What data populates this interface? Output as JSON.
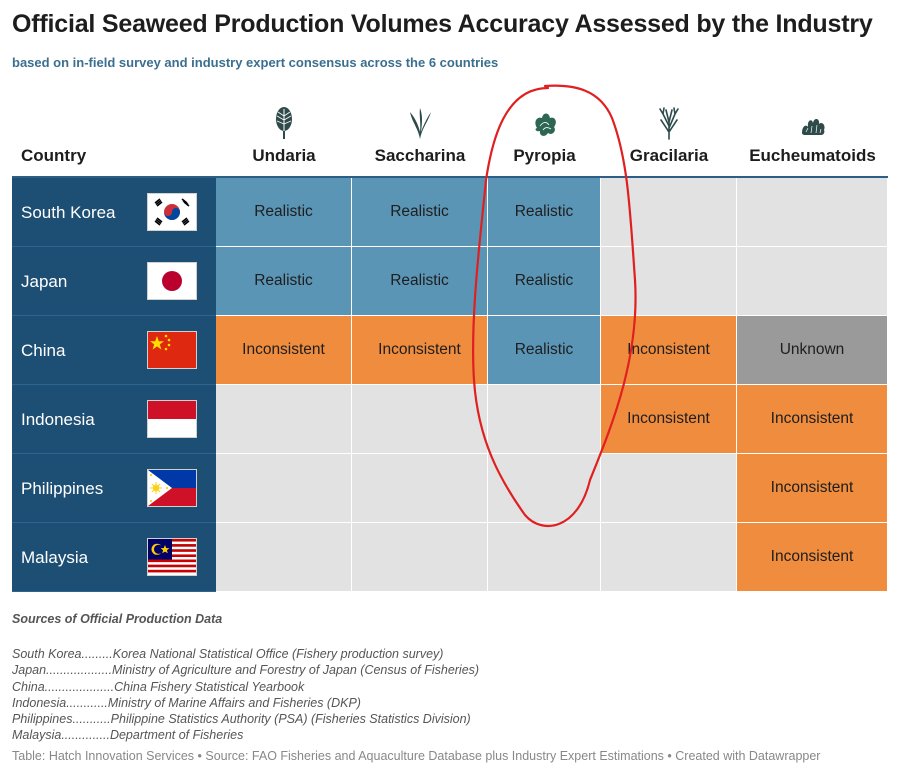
{
  "title": "Official Seaweed Production Volumes Accuracy Assessed by the Industry",
  "subtitle": "based on in-field survey and industry expert consensus across the 6 countries",
  "colors": {
    "Realistic": "#5b95b6",
    "Inconsistent": "#ef8c3d",
    "Unknown": "#9a9a9a",
    "empty": "#e2e2e2",
    "country_bg": "#1d4e73",
    "annotation": "#e02020"
  },
  "chart_data": {
    "type": "table",
    "header_country": "Country",
    "columns": [
      {
        "label": "Undaria",
        "icon": "kelp-leaf-icon"
      },
      {
        "label": "Saccharina",
        "icon": "kelp-fronds-icon"
      },
      {
        "label": "Pyropia",
        "icon": "nori-icon"
      },
      {
        "label": "Gracilaria",
        "icon": "branching-seaweed-icon"
      },
      {
        "label": "Eucheumatoids",
        "icon": "coral-seaweed-icon"
      }
    ],
    "rows": [
      {
        "country": "South Korea",
        "flag": "flag-south-korea",
        "values": [
          "Realistic",
          "Realistic",
          "Realistic",
          "",
          ""
        ]
      },
      {
        "country": "Japan",
        "flag": "flag-japan",
        "values": [
          "Realistic",
          "Realistic",
          "Realistic",
          "",
          ""
        ]
      },
      {
        "country": "China",
        "flag": "flag-china",
        "values": [
          "Inconsistent",
          "Inconsistent",
          "Realistic",
          "Inconsistent",
          "Unknown"
        ]
      },
      {
        "country": "Indonesia",
        "flag": "flag-indonesia",
        "values": [
          "",
          "",
          "",
          "Inconsistent",
          "Inconsistent"
        ]
      },
      {
        "country": "Philippines",
        "flag": "flag-philippines",
        "values": [
          "",
          "",
          "",
          "",
          "Inconsistent"
        ]
      },
      {
        "country": "Malaysia",
        "flag": "flag-malaysia",
        "values": [
          "",
          "",
          "",
          "",
          "Inconsistent"
        ]
      }
    ],
    "annotation": "red-hand-drawn-circle-around-pyropia"
  },
  "sources_title": "Sources of Official Production Data",
  "sources": [
    "South Korea.........Korea National Statistical Office (Fishery production survey)",
    "Japan...................Ministry of Agriculture and Forestry of Japan (Census of Fisheries)",
    "China....................China Fishery Statistical Yearbook",
    "Indonesia............Ministry of Marine Affairs and Fisheries (DKP)",
    "Philippines...........Philippine Statistics Authority (PSA) (Fisheries Statistics Division)",
    "Malaysia..............Department of Fisheries"
  ],
  "footer": "Table: Hatch Innovation Services • Source: FAO Fisheries and Aquaculture Database plus Industry Expert Estimations • Created with Datawrapper"
}
